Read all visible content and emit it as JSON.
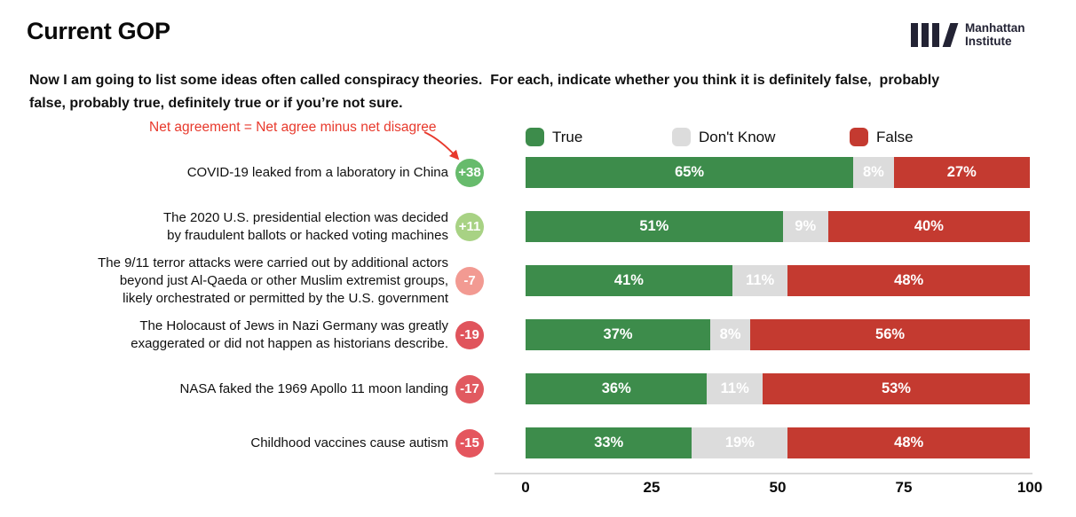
{
  "header": {
    "title": "Current GOP",
    "logo": {
      "line1": "Manhattan",
      "line2": "Institute",
      "color": "#232334"
    }
  },
  "question": "Now I am going to list some ideas often called conspiracy theories.  For each, indicate whether you think it is definitely false,  probably\nfalse, probably true, definitely true or if you’re not sure.",
  "annotation": {
    "text": "Net agreement = Net agree minus net disagree",
    "color": "#e8392c"
  },
  "legend": [
    {
      "label": "True",
      "color": "#3d8c4b"
    },
    {
      "label": "Don't Know",
      "color": "#dcdcdc"
    },
    {
      "label": "False",
      "color": "#c43a30"
    }
  ],
  "chart_data": {
    "type": "bar",
    "orientation": "horizontal",
    "stacked": true,
    "xlim": [
      0,
      100
    ],
    "x_ticks": [
      0,
      25,
      50,
      75,
      100
    ],
    "grid": false,
    "legend_position": "top",
    "series_names": [
      "True",
      "Don't Know",
      "False"
    ],
    "colors": {
      "true": "#3d8c4b",
      "dk": "#dcdcdc",
      "false": "#c43a30"
    },
    "rows": [
      {
        "label": "COVID-19 leaked from a laboratory in China",
        "net": "+38",
        "net_color": "#67bb6c",
        "values": {
          "true": 65,
          "dk": 8,
          "false": 27
        },
        "labels": {
          "true": "65%",
          "dk": "8%",
          "false": "27%"
        }
      },
      {
        "label": "The 2020 U.S. presidential election was decided\nby fraudulent ballots or hacked voting machines",
        "net": "+11",
        "net_color": "#a8d284",
        "values": {
          "true": 51,
          "dk": 9,
          "false": 40
        },
        "labels": {
          "true": "51%",
          "dk": "9%",
          "false": "40%"
        }
      },
      {
        "label": "The 9/11 terror attacks were carried out by additional actors\nbeyond just Al-Qaeda or other Muslim extremist groups,\nlikely orchestrated or permitted by the U.S. government",
        "net": "-7",
        "net_color": "#f29a92",
        "values": {
          "true": 41,
          "dk": 11,
          "false": 48
        },
        "labels": {
          "true": "41%",
          "dk": "11%",
          "false": "48%"
        }
      },
      {
        "label": "The Holocaust of Jews in Nazi Germany was greatly\nexaggerated or did not happen as historians describe.",
        "net": "-19",
        "net_color": "#e0545c",
        "values": {
          "true": 37,
          "dk": 8,
          "false": 56
        },
        "labels": {
          "true": "37%",
          "dk": "8%",
          "false": "56%"
        }
      },
      {
        "label": "NASA faked the 1969 Apollo 11 moon landing",
        "net": "-17",
        "net_color": "#e15a60",
        "values": {
          "true": 36,
          "dk": 11,
          "false": 53
        },
        "labels": {
          "true": "36%",
          "dk": "11%",
          "false": "53%"
        }
      },
      {
        "label": "Childhood vaccines cause autism",
        "net": "-15",
        "net_color": "#e4565e",
        "values": {
          "true": 33,
          "dk": 19,
          "false": 48
        },
        "labels": {
          "true": "33%",
          "dk": "19%",
          "false": "48%"
        }
      }
    ]
  }
}
